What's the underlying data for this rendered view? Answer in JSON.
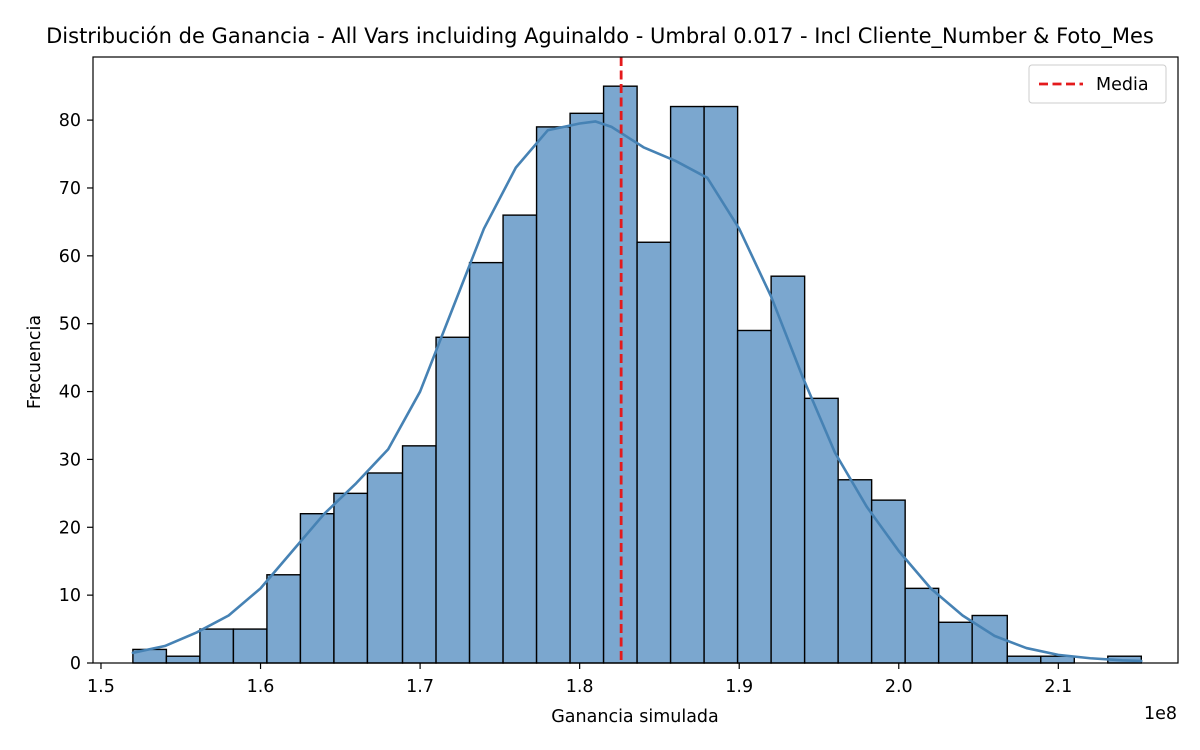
{
  "chart_data": {
    "type": "bar",
    "title": "Distribución de Ganancia - All Vars incluiding Aguinaldo - Umbral 0.017 - Incl Cliente_Number & Foto_Mes",
    "xlabel": "Ganancia simulada",
    "ylabel": "Frecuencia",
    "x_offset_text": "1e8",
    "xlim": [
      1.495,
      2.175
    ],
    "ylim": [
      0,
      89.3
    ],
    "xticks": [
      1.5,
      1.6,
      1.7,
      1.8,
      1.9,
      2.0,
      2.1
    ],
    "xtick_labels": [
      "1.5",
      "1.6",
      "1.7",
      "1.8",
      "1.9",
      "2.0",
      "2.1"
    ],
    "yticks": [
      0,
      10,
      20,
      30,
      40,
      50,
      60,
      70,
      80
    ],
    "ytick_labels": [
      "0",
      "10",
      "20",
      "30",
      "40",
      "50",
      "60",
      "70",
      "80"
    ],
    "bin_edges": [
      1.52,
      1.541,
      1.562,
      1.583,
      1.604,
      1.625,
      1.646,
      1.667,
      1.689,
      1.71,
      1.731,
      1.752,
      1.773,
      1.794,
      1.815,
      1.836,
      1.857,
      1.878,
      1.899,
      1.92,
      1.941,
      1.962,
      1.983,
      2.004,
      2.025,
      2.046,
      2.068,
      2.089,
      2.11,
      2.131,
      2.152
    ],
    "counts": [
      2,
      1,
      5,
      5,
      13,
      22,
      25,
      28,
      32,
      48,
      59,
      66,
      79,
      81,
      85,
      62,
      82,
      82,
      49,
      57,
      39,
      27,
      24,
      11,
      6,
      7,
      1,
      1,
      0,
      1
    ],
    "kde": {
      "x": [
        1.52,
        1.54,
        1.56,
        1.58,
        1.6,
        1.62,
        1.64,
        1.66,
        1.68,
        1.7,
        1.72,
        1.74,
        1.76,
        1.78,
        1.8,
        1.81,
        1.82,
        1.84,
        1.86,
        1.88,
        1.9,
        1.92,
        1.94,
        1.96,
        1.98,
        2.0,
        2.02,
        2.04,
        2.06,
        2.08,
        2.1,
        2.12,
        2.14,
        2.152
      ],
      "y": [
        1.5,
        2.5,
        4.5,
        7.0,
        11.0,
        16.5,
        22.0,
        26.5,
        31.5,
        40.0,
        52.0,
        64.0,
        73.0,
        78.5,
        79.5,
        79.8,
        79.0,
        76.0,
        74.0,
        71.5,
        64.0,
        54.0,
        42.0,
        31.0,
        23.0,
        16.5,
        11.0,
        7.0,
        4.0,
        2.2,
        1.2,
        0.7,
        0.4,
        0.3
      ]
    },
    "mean_line": {
      "x": 1.826,
      "label": "Media",
      "color": "#e41a1c"
    },
    "bar_fill": "#7ba7cf",
    "bar_edge": "#000000",
    "kde_color": "#4682b4",
    "legend_placement": "top-right",
    "grid": false
  }
}
